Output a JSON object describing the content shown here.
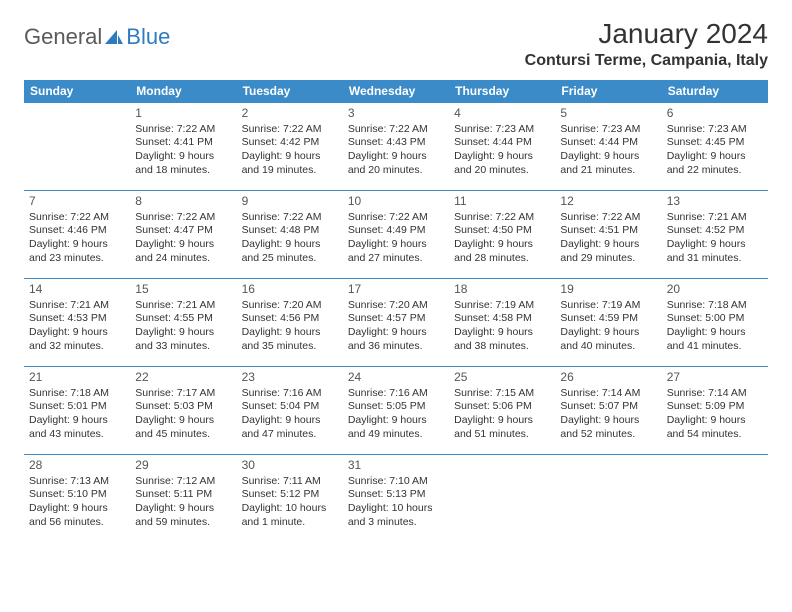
{
  "colors": {
    "header_bg": "#3b8bc9",
    "header_text": "#ffffff",
    "row_border": "#3b8bc9",
    "body_text": "#333333",
    "daynum_text": "#555555",
    "logo_general": "#5a5a5a",
    "logo_blue": "#2f7bbf",
    "background": "#ffffff"
  },
  "header": {
    "logo_general": "General",
    "logo_blue": "Blue",
    "month_title": "January 2024",
    "location": "Contursi Terme, Campania, Italy"
  },
  "weekdays": [
    "Sunday",
    "Monday",
    "Tuesday",
    "Wednesday",
    "Thursday",
    "Friday",
    "Saturday"
  ],
  "weeks": [
    [
      null,
      {
        "day": "1",
        "sunrise": "Sunrise: 7:22 AM",
        "sunset": "Sunset: 4:41 PM",
        "daylight1": "Daylight: 9 hours",
        "daylight2": "and 18 minutes."
      },
      {
        "day": "2",
        "sunrise": "Sunrise: 7:22 AM",
        "sunset": "Sunset: 4:42 PM",
        "daylight1": "Daylight: 9 hours",
        "daylight2": "and 19 minutes."
      },
      {
        "day": "3",
        "sunrise": "Sunrise: 7:22 AM",
        "sunset": "Sunset: 4:43 PM",
        "daylight1": "Daylight: 9 hours",
        "daylight2": "and 20 minutes."
      },
      {
        "day": "4",
        "sunrise": "Sunrise: 7:23 AM",
        "sunset": "Sunset: 4:44 PM",
        "daylight1": "Daylight: 9 hours",
        "daylight2": "and 20 minutes."
      },
      {
        "day": "5",
        "sunrise": "Sunrise: 7:23 AM",
        "sunset": "Sunset: 4:44 PM",
        "daylight1": "Daylight: 9 hours",
        "daylight2": "and 21 minutes."
      },
      {
        "day": "6",
        "sunrise": "Sunrise: 7:23 AM",
        "sunset": "Sunset: 4:45 PM",
        "daylight1": "Daylight: 9 hours",
        "daylight2": "and 22 minutes."
      }
    ],
    [
      {
        "day": "7",
        "sunrise": "Sunrise: 7:22 AM",
        "sunset": "Sunset: 4:46 PM",
        "daylight1": "Daylight: 9 hours",
        "daylight2": "and 23 minutes."
      },
      {
        "day": "8",
        "sunrise": "Sunrise: 7:22 AM",
        "sunset": "Sunset: 4:47 PM",
        "daylight1": "Daylight: 9 hours",
        "daylight2": "and 24 minutes."
      },
      {
        "day": "9",
        "sunrise": "Sunrise: 7:22 AM",
        "sunset": "Sunset: 4:48 PM",
        "daylight1": "Daylight: 9 hours",
        "daylight2": "and 25 minutes."
      },
      {
        "day": "10",
        "sunrise": "Sunrise: 7:22 AM",
        "sunset": "Sunset: 4:49 PM",
        "daylight1": "Daylight: 9 hours",
        "daylight2": "and 27 minutes."
      },
      {
        "day": "11",
        "sunrise": "Sunrise: 7:22 AM",
        "sunset": "Sunset: 4:50 PM",
        "daylight1": "Daylight: 9 hours",
        "daylight2": "and 28 minutes."
      },
      {
        "day": "12",
        "sunrise": "Sunrise: 7:22 AM",
        "sunset": "Sunset: 4:51 PM",
        "daylight1": "Daylight: 9 hours",
        "daylight2": "and 29 minutes."
      },
      {
        "day": "13",
        "sunrise": "Sunrise: 7:21 AM",
        "sunset": "Sunset: 4:52 PM",
        "daylight1": "Daylight: 9 hours",
        "daylight2": "and 31 minutes."
      }
    ],
    [
      {
        "day": "14",
        "sunrise": "Sunrise: 7:21 AM",
        "sunset": "Sunset: 4:53 PM",
        "daylight1": "Daylight: 9 hours",
        "daylight2": "and 32 minutes."
      },
      {
        "day": "15",
        "sunrise": "Sunrise: 7:21 AM",
        "sunset": "Sunset: 4:55 PM",
        "daylight1": "Daylight: 9 hours",
        "daylight2": "and 33 minutes."
      },
      {
        "day": "16",
        "sunrise": "Sunrise: 7:20 AM",
        "sunset": "Sunset: 4:56 PM",
        "daylight1": "Daylight: 9 hours",
        "daylight2": "and 35 minutes."
      },
      {
        "day": "17",
        "sunrise": "Sunrise: 7:20 AM",
        "sunset": "Sunset: 4:57 PM",
        "daylight1": "Daylight: 9 hours",
        "daylight2": "and 36 minutes."
      },
      {
        "day": "18",
        "sunrise": "Sunrise: 7:19 AM",
        "sunset": "Sunset: 4:58 PM",
        "daylight1": "Daylight: 9 hours",
        "daylight2": "and 38 minutes."
      },
      {
        "day": "19",
        "sunrise": "Sunrise: 7:19 AM",
        "sunset": "Sunset: 4:59 PM",
        "daylight1": "Daylight: 9 hours",
        "daylight2": "and 40 minutes."
      },
      {
        "day": "20",
        "sunrise": "Sunrise: 7:18 AM",
        "sunset": "Sunset: 5:00 PM",
        "daylight1": "Daylight: 9 hours",
        "daylight2": "and 41 minutes."
      }
    ],
    [
      {
        "day": "21",
        "sunrise": "Sunrise: 7:18 AM",
        "sunset": "Sunset: 5:01 PM",
        "daylight1": "Daylight: 9 hours",
        "daylight2": "and 43 minutes."
      },
      {
        "day": "22",
        "sunrise": "Sunrise: 7:17 AM",
        "sunset": "Sunset: 5:03 PM",
        "daylight1": "Daylight: 9 hours",
        "daylight2": "and 45 minutes."
      },
      {
        "day": "23",
        "sunrise": "Sunrise: 7:16 AM",
        "sunset": "Sunset: 5:04 PM",
        "daylight1": "Daylight: 9 hours",
        "daylight2": "and 47 minutes."
      },
      {
        "day": "24",
        "sunrise": "Sunrise: 7:16 AM",
        "sunset": "Sunset: 5:05 PM",
        "daylight1": "Daylight: 9 hours",
        "daylight2": "and 49 minutes."
      },
      {
        "day": "25",
        "sunrise": "Sunrise: 7:15 AM",
        "sunset": "Sunset: 5:06 PM",
        "daylight1": "Daylight: 9 hours",
        "daylight2": "and 51 minutes."
      },
      {
        "day": "26",
        "sunrise": "Sunrise: 7:14 AM",
        "sunset": "Sunset: 5:07 PM",
        "daylight1": "Daylight: 9 hours",
        "daylight2": "and 52 minutes."
      },
      {
        "day": "27",
        "sunrise": "Sunrise: 7:14 AM",
        "sunset": "Sunset: 5:09 PM",
        "daylight1": "Daylight: 9 hours",
        "daylight2": "and 54 minutes."
      }
    ],
    [
      {
        "day": "28",
        "sunrise": "Sunrise: 7:13 AM",
        "sunset": "Sunset: 5:10 PM",
        "daylight1": "Daylight: 9 hours",
        "daylight2": "and 56 minutes."
      },
      {
        "day": "29",
        "sunrise": "Sunrise: 7:12 AM",
        "sunset": "Sunset: 5:11 PM",
        "daylight1": "Daylight: 9 hours",
        "daylight2": "and 59 minutes."
      },
      {
        "day": "30",
        "sunrise": "Sunrise: 7:11 AM",
        "sunset": "Sunset: 5:12 PM",
        "daylight1": "Daylight: 10 hours",
        "daylight2": "and 1 minute."
      },
      {
        "day": "31",
        "sunrise": "Sunrise: 7:10 AM",
        "sunset": "Sunset: 5:13 PM",
        "daylight1": "Daylight: 10 hours",
        "daylight2": "and 3 minutes."
      },
      null,
      null,
      null
    ]
  ]
}
